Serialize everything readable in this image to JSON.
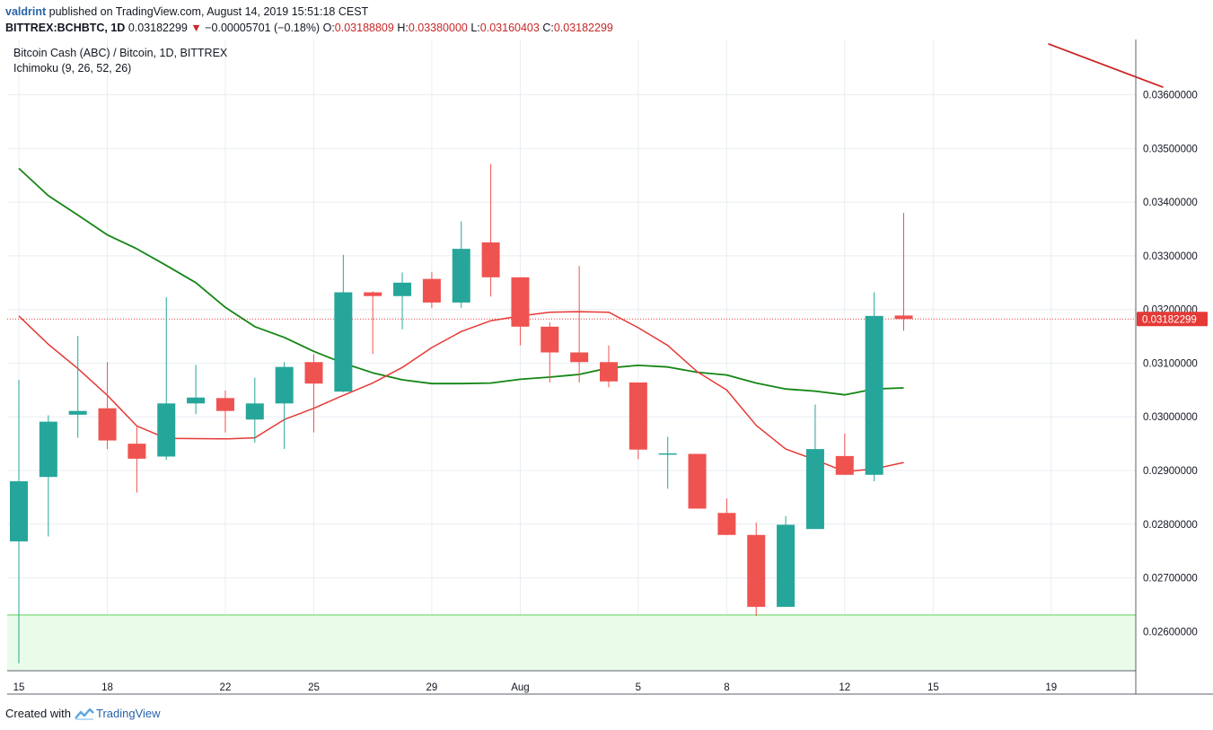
{
  "header": {
    "author": "valdrint",
    "published_text": " published on TradingView.com, August 14, 2019 15:51:18 CEST",
    "symbol": "BITTREX:BCHBTC, 1D",
    "last": "0.03182299",
    "change_arrow": "▼",
    "change": "−0.00005701 (−0.18%)",
    "open_label": "O:",
    "open": "0.03188809",
    "high_label": "H:",
    "high": "0.03380000",
    "low_label": "L:",
    "low": "0.03160403",
    "close_label": "C:",
    "close": "0.03182299"
  },
  "legend": {
    "title": "Bitcoin Cash (ABC) / Bitcoin, 1D, BITTREX",
    "indicator": "Ichimoku (9, 26, 52, 26)"
  },
  "footer": {
    "created_with": "Created with",
    "brand": "TradingView"
  },
  "colors": {
    "up": "#26a69a",
    "down": "#ef5350",
    "tenkan": "#e53935",
    "kijun": "#138613",
    "cloud_line": "#cc2222",
    "price_line": "#e53935",
    "support_fill": "#e9fbe9",
    "support_line": "#8fe08f"
  },
  "chart_data": {
    "type": "candlestick",
    "x_ticks": [
      {
        "i": 0,
        "label": "15"
      },
      {
        "i": 3,
        "label": "18"
      },
      {
        "i": 7,
        "label": "22"
      },
      {
        "i": 10,
        "label": "25"
      },
      {
        "i": 14,
        "label": "29"
      },
      {
        "i": 17,
        "label": "Aug"
      },
      {
        "i": 21,
        "label": "5"
      },
      {
        "i": 24,
        "label": "8"
      },
      {
        "i": 28,
        "label": "12"
      },
      {
        "i": 31,
        "label": "15"
      },
      {
        "i": 35,
        "label": "19"
      }
    ],
    "y_ticks": [
      "0.02600000",
      "0.02700000",
      "0.02800000",
      "0.02900000",
      "0.03000000",
      "0.03100000",
      "0.03200000",
      "0.03300000",
      "0.03400000",
      "0.03500000",
      "0.03600000"
    ],
    "ylim": [
      0.02527,
      0.03703
    ],
    "candles": [
      {
        "o": 0.02768,
        "h": 0.03069,
        "l": 0.02541,
        "c": 0.0288
      },
      {
        "o": 0.02888,
        "h": 0.03003,
        "l": 0.02777,
        "c": 0.02991
      },
      {
        "o": 0.03004,
        "h": 0.03151,
        "l": 0.02961,
        "c": 0.03011
      },
      {
        "o": 0.03016,
        "h": 0.03102,
        "l": 0.0294,
        "c": 0.02956
      },
      {
        "o": 0.0295,
        "h": 0.02981,
        "l": 0.02859,
        "c": 0.02922
      },
      {
        "o": 0.02926,
        "h": 0.03223,
        "l": 0.0292,
        "c": 0.03025
      },
      {
        "o": 0.03025,
        "h": 0.03097,
        "l": 0.03005,
        "c": 0.03036
      },
      {
        "o": 0.03035,
        "h": 0.03049,
        "l": 0.02971,
        "c": 0.03011
      },
      {
        "o": 0.02995,
        "h": 0.03073,
        "l": 0.02952,
        "c": 0.03025
      },
      {
        "o": 0.03025,
        "h": 0.03102,
        "l": 0.0294,
        "c": 0.03093
      },
      {
        "o": 0.03102,
        "h": 0.03117,
        "l": 0.02971,
        "c": 0.03062
      },
      {
        "o": 0.03047,
        "h": 0.03302,
        "l": 0.03046,
        "c": 0.03232
      },
      {
        "o": 0.03232,
        "h": 0.03234,
        "l": 0.03117,
        "c": 0.03225
      },
      {
        "o": 0.03225,
        "h": 0.03269,
        "l": 0.03163,
        "c": 0.0325
      },
      {
        "o": 0.03257,
        "h": 0.0327,
        "l": 0.03203,
        "c": 0.03213
      },
      {
        "o": 0.03213,
        "h": 0.03364,
        "l": 0.03203,
        "c": 0.03313
      },
      {
        "o": 0.03325,
        "h": 0.03471,
        "l": 0.03224,
        "c": 0.0326
      },
      {
        "o": 0.0326,
        "h": 0.0326,
        "l": 0.03133,
        "c": 0.03168
      },
      {
        "o": 0.03168,
        "h": 0.03176,
        "l": 0.03064,
        "c": 0.0312
      },
      {
        "o": 0.0312,
        "h": 0.03281,
        "l": 0.03064,
        "c": 0.03102
      },
      {
        "o": 0.03102,
        "h": 0.03133,
        "l": 0.03055,
        "c": 0.03066
      },
      {
        "o": 0.03064,
        "h": 0.03064,
        "l": 0.02921,
        "c": 0.02939
      },
      {
        "o": 0.02932,
        "h": 0.02963,
        "l": 0.02866,
        "c": 0.02932
      },
      {
        "o": 0.02931,
        "h": 0.02931,
        "l": 0.02829,
        "c": 0.02829
      },
      {
        "o": 0.02821,
        "h": 0.02848,
        "l": 0.0278,
        "c": 0.0278
      },
      {
        "o": 0.0278,
        "h": 0.02803,
        "l": 0.02629,
        "c": 0.02646
      },
      {
        "o": 0.02646,
        "h": 0.02815,
        "l": 0.02646,
        "c": 0.02799
      },
      {
        "o": 0.02791,
        "h": 0.03023,
        "l": 0.02791,
        "c": 0.0294
      },
      {
        "o": 0.02927,
        "h": 0.02969,
        "l": 0.02892,
        "c": 0.02892
      },
      {
        "o": 0.02892,
        "h": 0.03232,
        "l": 0.0288,
        "c": 0.03188
      },
      {
        "o": 0.03188809,
        "h": 0.0338,
        "l": 0.03160403,
        "c": 0.03182299
      }
    ],
    "tenkan_sen": [
      {
        "i": 0,
        "v": 0.03188
      },
      {
        "i": 1,
        "v": 0.03135
      },
      {
        "i": 2,
        "v": 0.0309
      },
      {
        "i": 3,
        "v": 0.0304
      },
      {
        "i": 4,
        "v": 0.02983
      },
      {
        "i": 5,
        "v": 0.0296
      },
      {
        "i": 7,
        "v": 0.02959
      },
      {
        "i": 8,
        "v": 0.02961
      },
      {
        "i": 9,
        "v": 0.02995
      },
      {
        "i": 10,
        "v": 0.03016
      },
      {
        "i": 11,
        "v": 0.0304
      },
      {
        "i": 12,
        "v": 0.03063
      },
      {
        "i": 13,
        "v": 0.03092
      },
      {
        "i": 14,
        "v": 0.03129
      },
      {
        "i": 15,
        "v": 0.03159
      },
      {
        "i": 16,
        "v": 0.03179
      },
      {
        "i": 17,
        "v": 0.03188
      },
      {
        "i": 18,
        "v": 0.03195
      },
      {
        "i": 19,
        "v": 0.03196
      },
      {
        "i": 20,
        "v": 0.03195
      },
      {
        "i": 21,
        "v": 0.03166
      },
      {
        "i": 22,
        "v": 0.03133
      },
      {
        "i": 23,
        "v": 0.03084
      },
      {
        "i": 24,
        "v": 0.0305
      },
      {
        "i": 25,
        "v": 0.02984
      },
      {
        "i": 26,
        "v": 0.0294
      },
      {
        "i": 27,
        "v": 0.0292
      },
      {
        "i": 28,
        "v": 0.02898
      },
      {
        "i": 29,
        "v": 0.02903
      },
      {
        "i": 30,
        "v": 0.02915
      }
    ],
    "kijun_sen": [
      {
        "i": 0,
        "v": 0.03463
      },
      {
        "i": 1,
        "v": 0.03412
      },
      {
        "i": 2,
        "v": 0.03376
      },
      {
        "i": 3,
        "v": 0.03339
      },
      {
        "i": 4,
        "v": 0.03313
      },
      {
        "i": 5,
        "v": 0.03282
      },
      {
        "i": 6,
        "v": 0.0325
      },
      {
        "i": 7,
        "v": 0.03204
      },
      {
        "i": 8,
        "v": 0.03168
      },
      {
        "i": 9,
        "v": 0.03148
      },
      {
        "i": 10,
        "v": 0.03122
      },
      {
        "i": 11,
        "v": 0.031
      },
      {
        "i": 12,
        "v": 0.03082
      },
      {
        "i": 13,
        "v": 0.03069
      },
      {
        "i": 14,
        "v": 0.03062
      },
      {
        "i": 15,
        "v": 0.03062
      },
      {
        "i": 16,
        "v": 0.03063
      },
      {
        "i": 17,
        "v": 0.0307
      },
      {
        "i": 18,
        "v": 0.03074
      },
      {
        "i": 19,
        "v": 0.03079
      },
      {
        "i": 20,
        "v": 0.03091
      },
      {
        "i": 21,
        "v": 0.03096
      },
      {
        "i": 22,
        "v": 0.03093
      },
      {
        "i": 23,
        "v": 0.03083
      },
      {
        "i": 24,
        "v": 0.03078
      },
      {
        "i": 25,
        "v": 0.03063
      },
      {
        "i": 26,
        "v": 0.03052
      },
      {
        "i": 27,
        "v": 0.03048
      },
      {
        "i": 28,
        "v": 0.03041
      },
      {
        "i": 29,
        "v": 0.03052
      },
      {
        "i": 30,
        "v": 0.03054
      }
    ],
    "cloud_line": [
      {
        "i": 34.9,
        "v": 0.03695
      },
      {
        "i": 38.8,
        "v": 0.03614
      }
    ],
    "support_zone": {
      "from": 0.02527,
      "to": 0.02631
    },
    "last_price": 0.03182299,
    "last_price_label": "0.03182299"
  }
}
